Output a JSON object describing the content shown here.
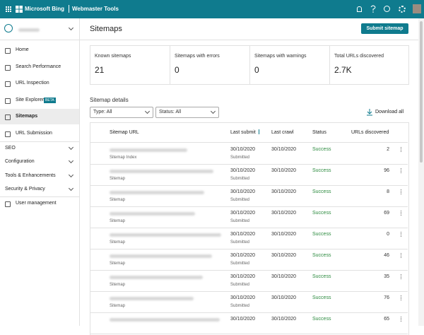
{
  "header": {
    "brand": "Microsoft Bing",
    "product": "Webmaster Tools"
  },
  "sidebar": {
    "items": [
      "Home",
      "Search Performance",
      "URL Inspection",
      "Site Explorer",
      "Sitemaps",
      "URL Submission"
    ],
    "badge": "BETA",
    "sections": [
      "SEO",
      "Configuration",
      "Tools & Enhancements",
      "Security & Privacy"
    ],
    "footer": "User management"
  },
  "main": {
    "title": "Sitemaps",
    "button": "Submit sitemap",
    "stats": [
      {
        "label": "Known sitemaps",
        "value": "21"
      },
      {
        "label": "Sitemaps with errors",
        "value": "0"
      },
      {
        "label": "Sitemaps with warnings",
        "value": "0"
      },
      {
        "label": "Total URLs discovered",
        "value": "2.7K"
      }
    ],
    "details_title": "Sitemap details",
    "filters": [
      "Type: All",
      "Status: All"
    ],
    "download": "Download all",
    "table": {
      "columns": [
        "Sitemap URL",
        "Last submit",
        "Last crawl",
        "Status",
        "URLs discovered"
      ],
      "rows": [
        {
          "type": "Sitemap Index",
          "submit": "30/10/2020",
          "submit_note": "Submitted",
          "crawl": "30/10/2020",
          "status": "Success",
          "urls": 2
        },
        {
          "type": "Sitemap",
          "submit": "30/10/2020",
          "submit_note": "Submitted",
          "crawl": "30/10/2020",
          "status": "Success",
          "urls": 96
        },
        {
          "type": "Sitemap",
          "submit": "30/10/2020",
          "submit_note": "Submitted",
          "crawl": "30/10/2020",
          "status": "Success",
          "urls": 8
        },
        {
          "type": "Sitemap",
          "submit": "30/10/2020",
          "submit_note": "Submitted",
          "crawl": "30/10/2020",
          "status": "Success",
          "urls": 69
        },
        {
          "type": "Sitemap",
          "submit": "30/10/2020",
          "submit_note": "Submitted",
          "crawl": "30/10/2020",
          "status": "Success",
          "urls": 0
        },
        {
          "type": "Sitemap",
          "submit": "30/10/2020",
          "submit_note": "Submitted",
          "crawl": "30/10/2020",
          "status": "Success",
          "urls": 46
        },
        {
          "type": "Sitemap",
          "submit": "30/10/2020",
          "submit_note": "Submitted",
          "crawl": "30/10/2020",
          "status": "Success",
          "urls": 35
        },
        {
          "type": "Sitemap",
          "submit": "30/10/2020",
          "submit_note": "Submitted",
          "crawl": "30/10/2020",
          "status": "Success",
          "urls": 76
        },
        {
          "submit": "30/10/2020",
          "crawl": "30/10/2020",
          "status": "Success",
          "urls": 65
        }
      ]
    }
  }
}
